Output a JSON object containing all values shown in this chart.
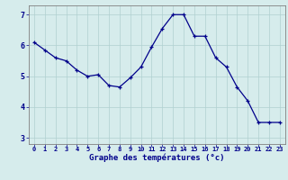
{
  "x": [
    0,
    1,
    2,
    3,
    4,
    5,
    6,
    7,
    8,
    9,
    10,
    11,
    12,
    13,
    14,
    15,
    16,
    17,
    18,
    19,
    20,
    21,
    22,
    23
  ],
  "y": [
    6.1,
    5.85,
    5.6,
    5.5,
    5.2,
    5.0,
    5.05,
    4.7,
    4.65,
    4.95,
    5.3,
    5.95,
    6.55,
    7.0,
    7.0,
    6.3,
    6.3,
    5.6,
    5.3,
    4.65,
    4.2,
    3.5,
    3.5,
    3.5
  ],
  "xlabel": "Graphe des températures (°c)",
  "xlim": [
    -0.5,
    23.5
  ],
  "ylim": [
    2.8,
    7.3
  ],
  "yticks": [
    3,
    4,
    5,
    6,
    7
  ],
  "xticks": [
    0,
    1,
    2,
    3,
    4,
    5,
    6,
    7,
    8,
    9,
    10,
    11,
    12,
    13,
    14,
    15,
    16,
    17,
    18,
    19,
    20,
    21,
    22,
    23
  ],
  "bg_color": "#d6ecec",
  "line_color": "#00008b",
  "grid_color": "#b0d0d0",
  "text_color": "#00008b",
  "spine_color": "#808080"
}
